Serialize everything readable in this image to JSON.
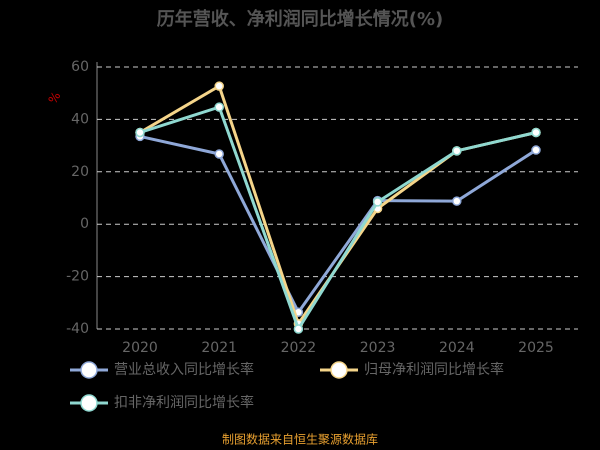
{
  "chart_data": {
    "type": "line",
    "title": "历年营收、净利润同比增长情况(%)",
    "y_label": "%",
    "categories": [
      "2020",
      "2021",
      "2022",
      "2023",
      "2024",
      "2025"
    ],
    "series": [
      {
        "name": "营业总收入同比增长率",
        "color": "#8fa8d8",
        "values": [
          33.5,
          26.8,
          -33.6,
          9,
          8.8,
          28.3
        ]
      },
      {
        "name": "归母净利润同比增长率",
        "color": "#f5d58a",
        "values": [
          35,
          52.7,
          -38,
          6,
          28,
          35
        ]
      },
      {
        "name": "扣非净利润同比增长率",
        "color": "#8fd8d0",
        "values": [
          35,
          44.7,
          -40,
          8.5,
          28,
          35
        ]
      }
    ],
    "ylim": [
      -40,
      60
    ],
    "yticks": [
      -40,
      -20,
      0,
      20,
      40,
      60
    ],
    "grid": true,
    "source": "制图数据来自恒生聚源数据库"
  }
}
